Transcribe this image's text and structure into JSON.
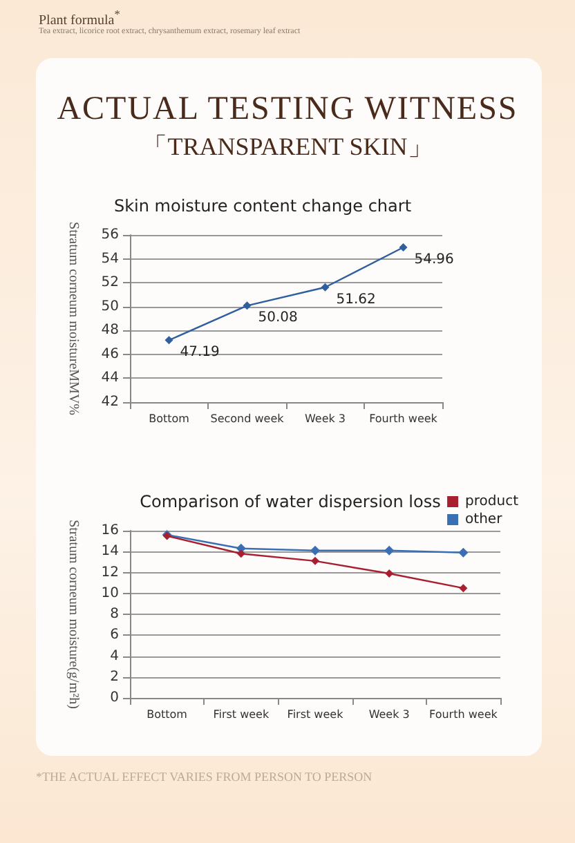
{
  "chart_data": [
    {
      "type": "line",
      "title": "Skin moisture content change chart",
      "ylabel": "Stratum corneum moistureMMV%",
      "annotations": [
        "Plant formula$^{*}$",
        "Tea extract, licorice root extract, chrysanthemum extract, rosemary leaf extract",
        "ACTUAL TESTING WITNESS",
        "「TRANSPARENT SKIN」"
      ],
      "categories": [
        "Bottom",
        "Second week",
        "Week 3",
        "Fourth week"
      ],
      "series": [
        {
          "color": "#2f5f9e",
          "values": [
            47.19,
            50.08,
            51.62,
            54.96
          ]
        }
      ],
      "ylim": [
        42,
        56
      ],
      "yticks": [
        42,
        44,
        46,
        48,
        50,
        52,
        54,
        56
      ],
      "grid": "y",
      "marker": "diamond",
      "data_labels": true
    },
    {
      "type": "line",
      "title": "Comparison of water dispersion loss",
      "ylabel": "Stratum corneum moisture(g/m²h)",
      "annotations": [
        "*THE ACTUAL EFFECT VARIES FROM PERSON TO PERSON"
      ],
      "categories": [
        "Bottom",
        "First week",
        "First week",
        "Week 3",
        "Fourth week"
      ],
      "series": [
        {
          "name": "product",
          "color": "#a8202f",
          "values": [
            15.5,
            13.8,
            13.1,
            11.9,
            10.5
          ]
        },
        {
          "name": "other",
          "color": "#3a6fb5",
          "values": [
            15.6,
            14.3,
            14.1,
            14.1,
            13.9
          ]
        }
      ],
      "ylim": [
        0,
        16
      ],
      "yticks": [
        0,
        2,
        4,
        6,
        8,
        10,
        12,
        14,
        16
      ],
      "grid": "y",
      "marker": "diamond",
      "legend": "top right"
    }
  ]
}
